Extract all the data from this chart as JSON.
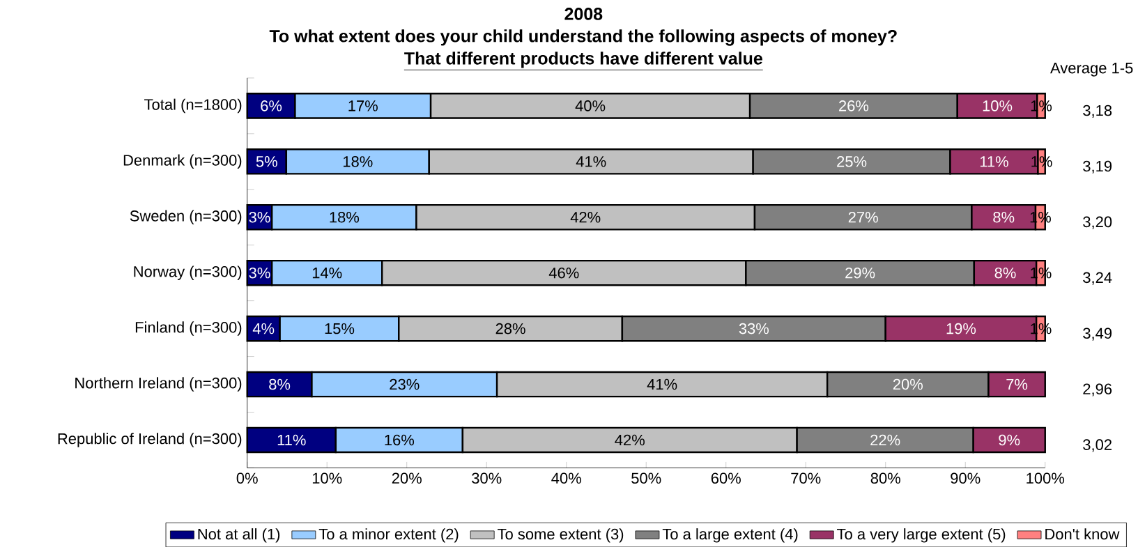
{
  "chart_data": {
    "type": "bar",
    "orientation": "horizontal",
    "stacked": true,
    "title": "2008",
    "subtitle": "To what extent does your child understand the following aspects of money?",
    "categories": [
      "Total (n=1800)",
      "Denmark (n=300)",
      "Sweden (n=300)",
      "Norway (n=300)",
      "Finland (n=300)",
      "Northern Ireland (n=300)",
      "Republic of Ireland (n=300)"
    ],
    "series": [
      {
        "name": "Not at all (1)",
        "color": "#000080",
        "values": [
          6,
          4.9,
          3.1,
          3.1,
          4.1,
          8.1,
          11.1
        ],
        "value_labels": [
          "6%",
          "5%",
          "3%",
          "3%",
          "4%",
          "8%",
          "11%"
        ]
      },
      {
        "name": "To a minor extent (2)",
        "color": "#99ccff",
        "values": [
          17,
          17.9,
          18.1,
          13.8,
          14.9,
          23.2,
          15.9
        ],
        "value_labels": [
          "17%",
          "18%",
          "18%",
          "14%",
          "15%",
          "23%",
          "16%"
        ]
      },
      {
        "name": "To some extent (3)",
        "color": "#c0c0c0",
        "values": [
          40,
          40.6,
          42.4,
          45.6,
          28,
          41.4,
          41.9
        ],
        "value_labels": [
          "40%",
          "41%",
          "42%",
          "46%",
          "28%",
          "41%",
          "42%"
        ]
      },
      {
        "name": "To a large extent (4)",
        "color": "#808080",
        "values": [
          26,
          24.7,
          27.2,
          28.6,
          33,
          20.2,
          22.1
        ],
        "value_labels": [
          "26%",
          "25%",
          "27%",
          "29%",
          "33%",
          "20%",
          "22%"
        ]
      },
      {
        "name": "To a very large extent (5)",
        "color": "#993366",
        "values": [
          10,
          11,
          8,
          7.8,
          18.9,
          7.1,
          9
        ],
        "value_labels": [
          "10%",
          "11%",
          "8%",
          "8%",
          "19%",
          "7%",
          "9%"
        ]
      },
      {
        "name": "Don't know",
        "color": "#ff8080",
        "values": [
          1,
          0.9,
          1.2,
          1.1,
          1.1,
          null,
          null
        ],
        "value_labels": [
          "1%",
          "1%",
          "1%",
          "1%",
          "1%",
          null,
          null
        ]
      }
    ],
    "xlim": [
      0,
      100
    ],
    "xticks": [
      {
        "value": 0,
        "label": "0%"
      },
      {
        "value": 10,
        "label": "10%"
      },
      {
        "value": 20,
        "label": "20%"
      },
      {
        "value": 30,
        "label": "30%"
      },
      {
        "value": 40,
        "label": "40%"
      },
      {
        "value": 50,
        "label": "50%"
      },
      {
        "value": 60,
        "label": "60%"
      },
      {
        "value": 70,
        "label": "70%"
      },
      {
        "value": 80,
        "label": "80%"
      },
      {
        "value": 90,
        "label": "90%"
      },
      {
        "value": 100,
        "label": "100%"
      }
    ],
    "legend": "bottom",
    "annotations": [
      "That different products have different value",
      "Average 1-5",
      "3,18",
      "3,19",
      "3,20",
      "3,24",
      "3,49",
      "2,96",
      "3,02"
    ]
  }
}
